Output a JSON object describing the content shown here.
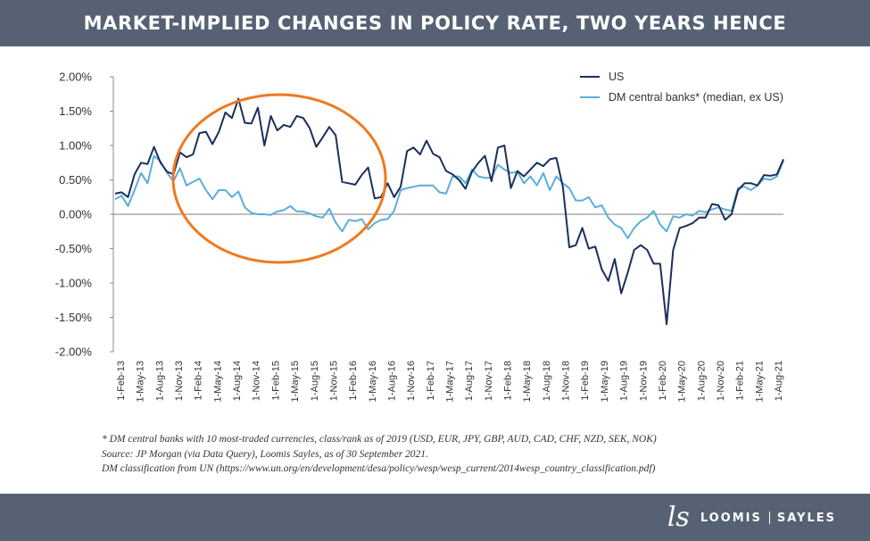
{
  "header": {
    "title": "MARKET-IMPLIED CHANGES IN POLICY RATE, TWO YEARS HENCE"
  },
  "footnotes": {
    "line1": "* DM central banks with 10 most-traded currencies, class/rank as of 2019 (USD, EUR, JPY, GBP, AUD, CAD, CHF, NZD, SEK, NOK)",
    "line2": "Source:  JP Morgan (via Data Query), Loomis Sayles, as of 30 September 2021.",
    "line3": "DM classification from UN (https://www.un.org/en/development/desa/policy/wesp/wesp_current/2014wesp_country_classification.pdf)"
  },
  "logo": {
    "mark": "ls",
    "word1": "LOOMIS",
    "word2": "SAYLES"
  },
  "colors": {
    "us": "#1b2f5c",
    "dm": "#5aaedc",
    "highlight": "#f07a1f",
    "header": "#566274"
  },
  "chart_data": {
    "type": "line",
    "title": "MARKET-IMPLIED CHANGES IN POLICY RATE, TWO YEARS HENCE",
    "ylim": [
      -0.02,
      0.02
    ],
    "yticks": [
      0.02,
      0.015,
      0.01,
      0.005,
      0.0,
      -0.005,
      -0.01,
      -0.015,
      -0.02
    ],
    "ytick_labels": [
      "2.00%",
      "1.50%",
      "1.00%",
      "0.50%",
      "0.00%",
      "-0.50%",
      "-1.00%",
      "-1.50%",
      "-2.00%"
    ],
    "xtick_labels": [
      "1-Feb-13",
      "1-May-13",
      "1-Aug-13",
      "1-Nov-13",
      "1-Feb-14",
      "1-May-14",
      "1-Aug-14",
      "1-Nov-14",
      "1-Feb-15",
      "1-May-15",
      "1-Aug-15",
      "1-Nov-15",
      "1-Feb-16",
      "1-May-16",
      "1-Aug-16",
      "1-Nov-16",
      "1-Feb-17",
      "1-May-17",
      "1-Aug-17",
      "1-Nov-17",
      "1-Feb-18",
      "1-May-18",
      "1-Aug-18",
      "1-Nov-18",
      "1-Feb-19",
      "1-May-19",
      "1-Aug-19",
      "1-Nov-19",
      "1-Feb-20",
      "1-May-20",
      "1-Aug-20",
      "1-Nov-20",
      "1-Feb-21",
      "1-May-21",
      "1-Aug-21"
    ],
    "legend_position": "top-right",
    "annotation": "orange ellipse highlighting 2014-2016 divergence",
    "series": [
      {
        "name": "US",
        "values": [
          0.3,
          0.32,
          0.25,
          0.58,
          0.75,
          0.73,
          0.98,
          0.75,
          0.62,
          0.58,
          0.9,
          0.83,
          0.87,
          1.18,
          1.2,
          1.02,
          1.2,
          1.48,
          1.4,
          1.68,
          1.33,
          1.32,
          1.55,
          1.0,
          1.43,
          1.22,
          1.3,
          1.27,
          1.43,
          1.4,
          1.25,
          0.98,
          1.12,
          1.27,
          1.15,
          0.47,
          0.45,
          0.43,
          0.57,
          0.68,
          0.23,
          0.25,
          0.45,
          0.25,
          0.4,
          0.92,
          0.97,
          0.87,
          1.07,
          0.88,
          0.83,
          0.63,
          0.58,
          0.5,
          0.37,
          0.62,
          0.75,
          0.85,
          0.48,
          0.97,
          1.0,
          0.38,
          0.63,
          0.55,
          0.65,
          0.75,
          0.7,
          0.8,
          0.82,
          0.4,
          -0.48,
          -0.45,
          -0.2,
          -0.5,
          -0.47,
          -0.8,
          -0.97,
          -0.65,
          -1.15,
          -0.85,
          -0.52,
          -0.45,
          -0.52,
          -0.72,
          -0.72,
          -1.6,
          -0.52,
          -0.2,
          -0.17,
          -0.13,
          -0.05,
          -0.05,
          0.15,
          0.13,
          -0.08,
          0.0,
          0.35,
          0.45,
          0.45,
          0.42,
          0.57,
          0.56,
          0.58,
          0.8
        ]
      },
      {
        "name": "DM central banks* (median, ex US)",
        "values": [
          0.22,
          0.27,
          0.12,
          0.35,
          0.6,
          0.45,
          0.85,
          0.77,
          0.6,
          0.48,
          0.67,
          0.42,
          0.47,
          0.52,
          0.35,
          0.22,
          0.35,
          0.35,
          0.25,
          0.33,
          0.1,
          0.02,
          0.0,
          0.0,
          -0.01,
          0.04,
          0.06,
          0.12,
          0.04,
          0.04,
          0.01,
          -0.03,
          -0.05,
          0.08,
          -0.12,
          -0.25,
          -0.08,
          -0.1,
          -0.07,
          -0.22,
          -0.13,
          -0.08,
          -0.07,
          0.05,
          0.35,
          0.38,
          0.4,
          0.42,
          0.42,
          0.42,
          0.32,
          0.3,
          0.55,
          0.55,
          0.45,
          0.65,
          0.55,
          0.53,
          0.53,
          0.72,
          0.65,
          0.6,
          0.62,
          0.45,
          0.55,
          0.42,
          0.6,
          0.35,
          0.55,
          0.45,
          0.38,
          0.2,
          0.2,
          0.25,
          0.1,
          0.13,
          -0.05,
          -0.15,
          -0.2,
          -0.35,
          -0.2,
          -0.1,
          -0.05,
          0.05,
          -0.15,
          -0.25,
          -0.03,
          -0.05,
          0.0,
          -0.02,
          0.05,
          0.03,
          0.07,
          0.1,
          0.07,
          0.05,
          0.38,
          0.4,
          0.35,
          0.42,
          0.52,
          0.5,
          0.55,
          0.78
        ]
      }
    ]
  }
}
